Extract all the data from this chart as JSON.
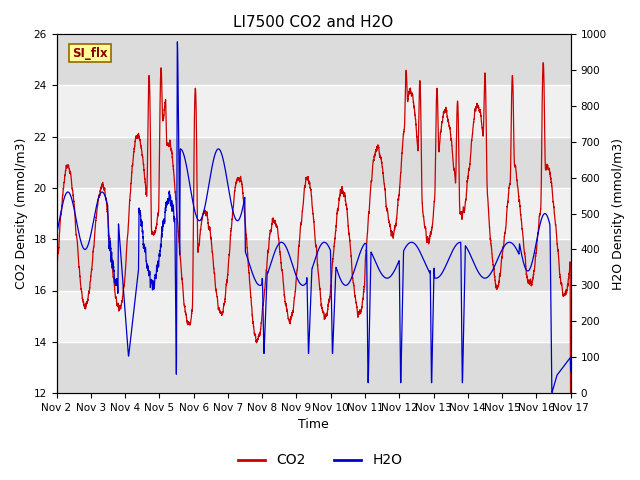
{
  "title": "LI7500 CO2 and H2O",
  "xlabel": "Time",
  "ylabel_left": "CO2 Density (mmol/m3)",
  "ylabel_right": "H2O Density (mmol/m3)",
  "ylim_left": [
    12,
    26
  ],
  "ylim_right": [
    0,
    1000
  ],
  "yticks_left": [
    12,
    14,
    16,
    18,
    20,
    22,
    24,
    26
  ],
  "yticks_right": [
    0,
    100,
    200,
    300,
    400,
    500,
    600,
    700,
    800,
    900,
    1000
  ],
  "xtick_labels": [
    "Nov 2",
    "Nov 3",
    "Nov 4",
    "Nov 5",
    "Nov 6",
    "Nov 7",
    "Nov 8",
    "Nov 9",
    "Nov 10",
    "Nov 11",
    "Nov 12",
    "Nov 13",
    "Nov 14",
    "Nov 15",
    "Nov 16",
    "Nov 17"
  ],
  "co2_color": "#CC0000",
  "h2o_color": "#0000CC",
  "annotation_text": "SI_flx",
  "annotation_bg": "#FFFF99",
  "annotation_border": "#996600",
  "bg_band1": "#DCDCDC",
  "bg_band2": "#F0F0F0",
  "grid_color": "#FFFFFF",
  "legend_co2": "CO2",
  "legend_h2o": "H2O",
  "title_fontsize": 11,
  "label_fontsize": 9,
  "tick_fontsize": 7.5
}
